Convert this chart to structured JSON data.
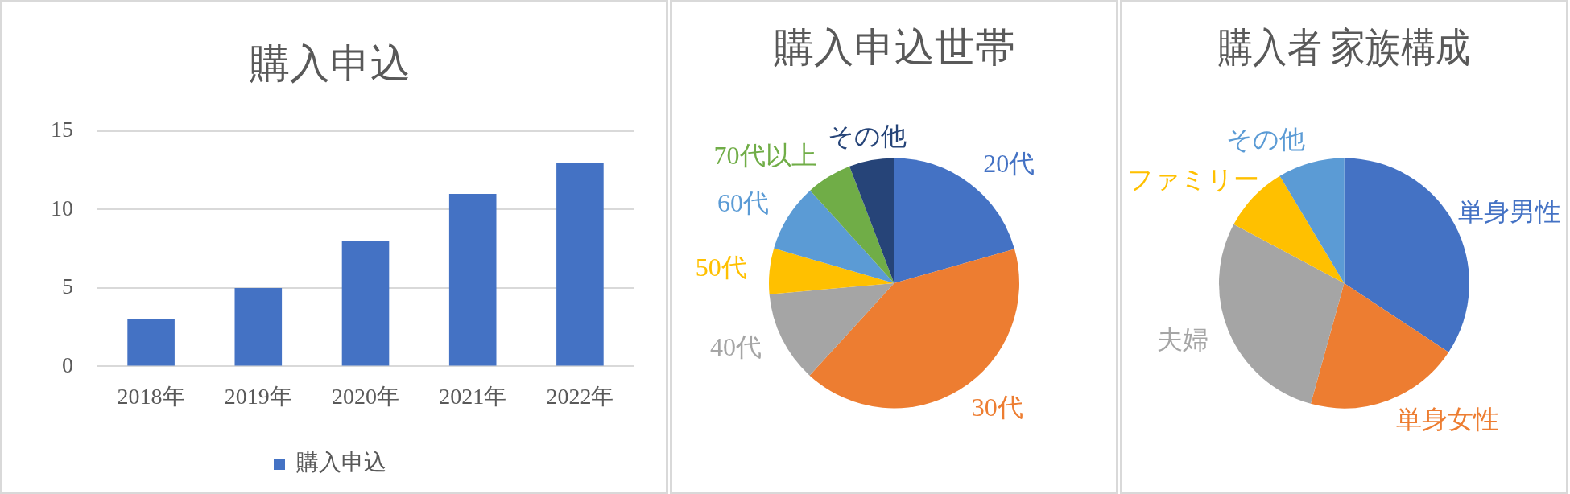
{
  "chart_data": [
    {
      "type": "bar",
      "title": "購入申込",
      "categories": [
        "2018年",
        "2019年",
        "2020年",
        "2021年",
        "2022年"
      ],
      "series": [
        {
          "name": "購入申込",
          "color": "#4472c4",
          "values": [
            3,
            5,
            8,
            11,
            13
          ]
        }
      ],
      "ylim": [
        0,
        15
      ],
      "yticks": [
        0,
        5,
        10,
        15
      ],
      "grid": "y",
      "legend": "bottom"
    },
    {
      "type": "pie",
      "title": "購入申込世帯",
      "categories": [
        "20代",
        "30代",
        "40代",
        "50代",
        "60代",
        "70代以上",
        "その他"
      ],
      "values": [
        20.6,
        41.2,
        11.8,
        5.9,
        8.8,
        5.9,
        5.8
      ],
      "colors": [
        "#4472c4",
        "#ed7d31",
        "#a5a5a5",
        "#ffc000",
        "#5b9bd5",
        "#70ad47",
        "#264478"
      ]
    },
    {
      "type": "pie",
      "title": "購入者 家族構成",
      "categories": [
        "単身男性",
        "単身女性",
        "夫婦",
        "ファミリー",
        "その他"
      ],
      "values": [
        34.3,
        20,
        28.5,
        8.6,
        8.6
      ],
      "colors": [
        "#4472c4",
        "#ed7d31",
        "#a5a5a5",
        "#ffc000",
        "#5b9bd5"
      ]
    }
  ]
}
